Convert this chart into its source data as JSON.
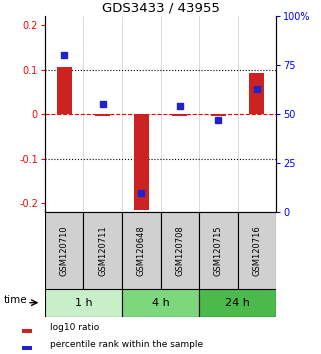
{
  "title": "GDS3433 / 43955",
  "samples": [
    "GSM120710",
    "GSM120711",
    "GSM120648",
    "GSM120708",
    "GSM120715",
    "GSM120716"
  ],
  "log10_ratio": [
    0.105,
    -0.005,
    -0.215,
    -0.005,
    -0.003,
    0.093
  ],
  "percentile_rank": [
    80,
    55,
    10,
    54,
    47,
    63
  ],
  "time_groups": [
    {
      "label": "1 h",
      "samples": [
        0,
        1
      ],
      "color": "#c8f0c8"
    },
    {
      "label": "4 h",
      "samples": [
        2,
        3
      ],
      "color": "#7dd87d"
    },
    {
      "label": "24 h",
      "samples": [
        4,
        5
      ],
      "color": "#4aba4a"
    }
  ],
  "ylim_left": [
    -0.22,
    0.22
  ],
  "ylim_right": [
    0,
    100
  ],
  "yticks_left": [
    -0.2,
    -0.1,
    0.0,
    0.1,
    0.2
  ],
  "yticks_right": [
    0,
    25,
    50,
    75,
    100
  ],
  "ytick_labels_left": [
    "-0.2",
    "-0.1",
    "0",
    "0.1",
    "0.2"
  ],
  "ytick_labels_right": [
    "0",
    "25",
    "50",
    "75",
    "100%"
  ],
  "hlines_dotted": [
    -0.1,
    0.1
  ],
  "bar_color_red": "#cc2222",
  "bar_color_blue": "#2222cc",
  "legend_red": "log10 ratio",
  "legend_blue": "percentile rank within the sample",
  "time_label": "time",
  "sample_box_color": "#d0d0d0",
  "bar_width": 0.55
}
